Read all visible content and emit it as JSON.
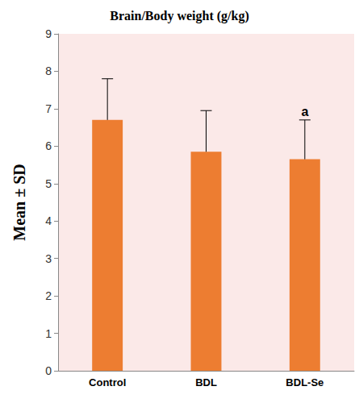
{
  "chart_data": {
    "type": "bar",
    "title": "Brain/Body weight (g/kg)",
    "y_label": "Mean ± SD",
    "categories": [
      "Control",
      "BDL",
      "BDL-Se"
    ],
    "values": [
      6.7,
      5.85,
      5.65
    ],
    "error": [
      1.1,
      1.1,
      1.05
    ],
    "annotations": [
      {
        "category": "BDL-Se",
        "text": "a"
      }
    ],
    "color": "#ed7d31",
    "ylim": [
      0,
      9
    ],
    "yticks": [
      0,
      1,
      2,
      3,
      4,
      5,
      6,
      7,
      8,
      9
    ],
    "grid": false
  }
}
